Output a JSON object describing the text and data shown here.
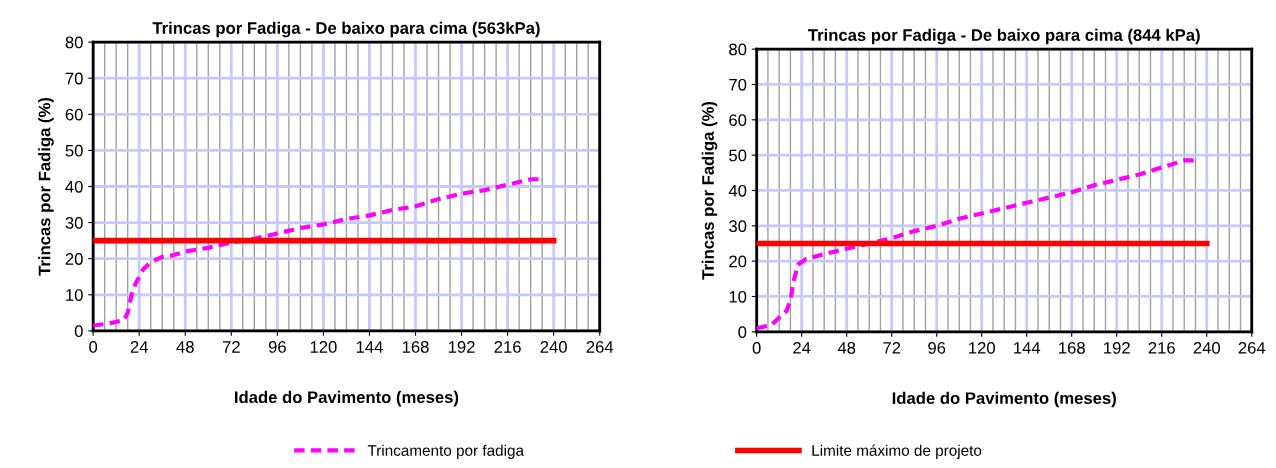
{
  "chart_data": [
    {
      "type": "line",
      "title": "Trincas por Fadiga - De baixo para cima (563kPa)",
      "xlabel": "Idade do Pavimento (meses)",
      "ylabel": "Trincas por Fadiga (%)",
      "series": [
        {
          "name": "Trincamento por fadiga",
          "color": "#ff00ff",
          "line_style": "dashed",
          "x": [
            0,
            8,
            16,
            18,
            20,
            22,
            26,
            30,
            36,
            42,
            48,
            60,
            72,
            84,
            96,
            108,
            120,
            132,
            144,
            156,
            168,
            180,
            192,
            204,
            216,
            228,
            234
          ],
          "values": [
            1.5,
            2,
            3,
            5,
            10,
            13,
            17,
            19,
            20.5,
            21,
            22,
            23,
            24.5,
            25.5,
            27,
            28.5,
            29.5,
            31,
            32,
            33.5,
            34.5,
            36.5,
            38,
            39,
            40.5,
            42,
            42
          ]
        },
        {
          "name": "Limite máximo de projeto",
          "color": "#ff0000",
          "line_style": "solid",
          "x": [
            0,
            240
          ],
          "values": [
            25,
            25
          ]
        }
      ],
      "xlim": [
        0,
        264
      ],
      "ylim": [
        0,
        80
      ],
      "xticks": [
        0,
        24,
        48,
        72,
        96,
        120,
        144,
        168,
        192,
        216,
        240,
        264
      ],
      "yticks": [
        0,
        10,
        20,
        30,
        40,
        50,
        60,
        70,
        80
      ],
      "grid": true,
      "legend": "bottom",
      "marker": "none"
    },
    {
      "type": "line",
      "title": "Trincas por Fadiga - De baixo para cima (844 kPa)",
      "xlabel": "Idade do Pavimento (meses)",
      "ylabel": "Trincas por Fadiga (%)",
      "series": [
        {
          "name": "Trincamento por fadiga",
          "color": "#ff00ff",
          "line_style": "dashed",
          "x": [
            0,
            8,
            12,
            16,
            18,
            20,
            22,
            26,
            36,
            48,
            60,
            72,
            84,
            96,
            108,
            120,
            132,
            144,
            156,
            168,
            180,
            192,
            204,
            216,
            228,
            234
          ],
          "values": [
            1,
            2,
            4,
            6,
            9,
            15,
            19,
            20.5,
            22,
            23.5,
            25,
            26.5,
            28.5,
            30,
            32,
            33.5,
            35,
            36.5,
            38,
            39.5,
            41.5,
            43,
            44.5,
            46.5,
            48.5,
            48.5
          ]
        },
        {
          "name": "Limite máximo de projeto",
          "color": "#ff0000",
          "line_style": "solid",
          "x": [
            0,
            240
          ],
          "values": [
            25,
            25
          ]
        }
      ],
      "xlim": [
        0,
        264
      ],
      "ylim": [
        0,
        80
      ],
      "xticks": [
        0,
        24,
        48,
        72,
        96,
        120,
        144,
        168,
        192,
        216,
        240,
        264
      ],
      "yticks": [
        0,
        10,
        20,
        30,
        40,
        50,
        60,
        70,
        80
      ],
      "grid": true,
      "legend": "bottom",
      "marker": "none"
    }
  ]
}
